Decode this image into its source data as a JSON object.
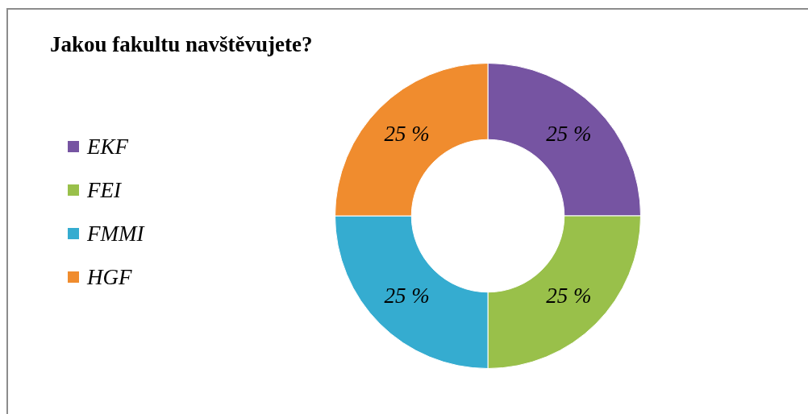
{
  "chart_data": {
    "type": "donut",
    "title": "Jakou fakultu navštěvujete?",
    "categories": [
      "EKF",
      "FEI",
      "FMMI",
      "HGF"
    ],
    "values": [
      25,
      25,
      25,
      25
    ],
    "colors": [
      "#7654a2",
      "#99c04a",
      "#35acd0",
      "#f08c2e"
    ],
    "value_labels": [
      "25 %",
      "25 %",
      "25 %",
      "25 %"
    ],
    "legend": "left"
  }
}
